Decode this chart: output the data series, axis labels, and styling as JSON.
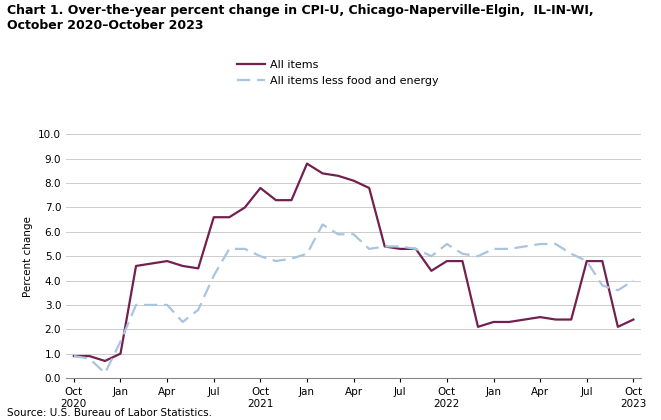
{
  "title": "Chart 1. Over-the-year percent change in CPI-U, Chicago-Naperville-Elgin,  IL-IN-WI,\nOctober 2020–October 2023",
  "ylabel": "Percent change",
  "source": "Source: U.S. Bureau of Labor Statistics.",
  "ylim": [
    0.0,
    10.0
  ],
  "yticks": [
    0.0,
    1.0,
    2.0,
    3.0,
    4.0,
    5.0,
    6.0,
    7.0,
    8.0,
    9.0,
    10.0
  ],
  "legend_all_items": "All items",
  "legend_core": "All items less food and energy",
  "all_items_color": "#722050",
  "core_color": "#a8c4e0",
  "all_items": [
    0.9,
    0.9,
    0.7,
    1.0,
    4.6,
    4.7,
    4.8,
    4.6,
    4.5,
    6.6,
    6.6,
    7.0,
    7.8,
    7.3,
    7.3,
    8.8,
    8.4,
    8.3,
    8.1,
    7.8,
    5.4,
    5.3,
    5.3,
    4.4,
    4.8,
    4.8,
    2.1,
    2.3,
    2.3,
    2.4,
    2.5,
    2.4,
    2.4,
    4.8,
    4.8,
    2.1,
    2.4
  ],
  "core_items": [
    0.9,
    0.8,
    0.2,
    1.5,
    3.0,
    3.0,
    3.0,
    2.3,
    2.8,
    4.2,
    5.3,
    5.3,
    5.0,
    4.8,
    4.9,
    5.1,
    6.3,
    5.9,
    5.9,
    5.3,
    5.4,
    5.4,
    5.3,
    5.0,
    5.5,
    5.1,
    5.0,
    5.3,
    5.3,
    5.4,
    5.5,
    5.5,
    5.1,
    4.8,
    3.8,
    3.6,
    4.0
  ],
  "x_ticks": [
    0,
    3,
    6,
    9,
    12,
    15,
    18,
    21,
    24,
    27,
    30,
    33,
    36
  ],
  "x_labels": [
    "Oct\n2020",
    "Jan",
    "Apr",
    "Jul",
    "Oct\n2021",
    "Jan",
    "Apr",
    "Jul",
    "Oct\n2022",
    "Jan",
    "Apr",
    "Jul",
    "Oct\n2023"
  ],
  "background_color": "#ffffff",
  "grid_color": "#cccccc"
}
